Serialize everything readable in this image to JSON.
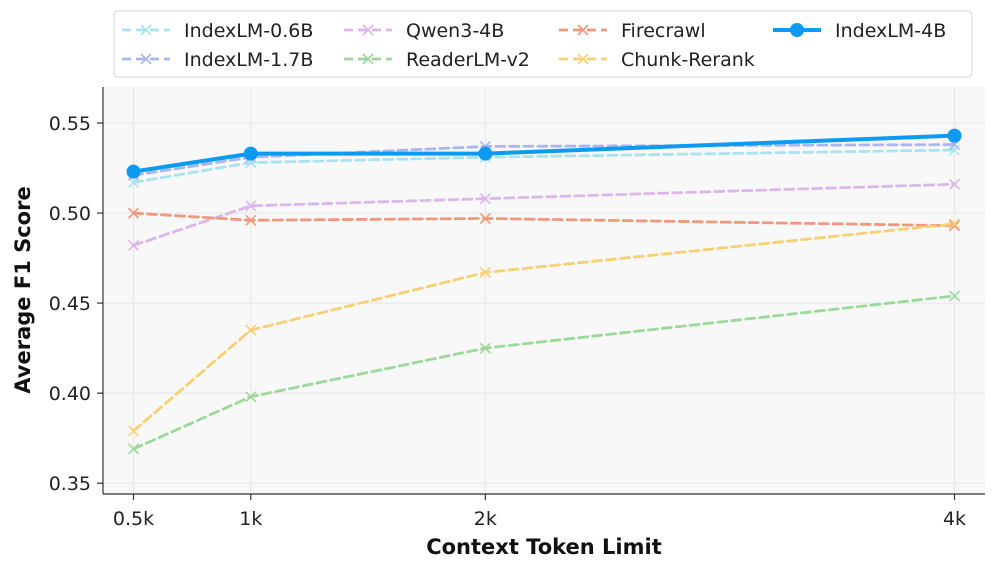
{
  "chart_data": {
    "type": "line",
    "title": "",
    "xlabel": "Context Token Limit",
    "ylabel": "Average F1 Score",
    "x": [
      0.5,
      1,
      2,
      4
    ],
    "x_tick_labels": [
      "0.5k",
      "1k",
      "2k",
      "4k"
    ],
    "xlim": [
      0.37,
      4.13
    ],
    "ylim": [
      0.344,
      0.57
    ],
    "y_ticks": [
      0.35,
      0.4,
      0.45,
      0.5,
      0.55
    ],
    "y_tick_labels": [
      "0.35",
      "0.40",
      "0.45",
      "0.50",
      "0.55"
    ],
    "grid": true,
    "legend_position": "top",
    "series": [
      {
        "name": "IndexLM-0.6B",
        "values": [
          0.517,
          0.528,
          0.531,
          0.535
        ],
        "color": "#a8e3ef",
        "style": "dashed",
        "marker": "x"
      },
      {
        "name": "IndexLM-1.7B",
        "values": [
          0.521,
          0.531,
          0.537,
          0.538
        ],
        "color": "#a9b6f0",
        "style": "dashed",
        "marker": "x"
      },
      {
        "name": "Qwen3-4B",
        "values": [
          0.482,
          0.504,
          0.508,
          0.516
        ],
        "color": "#dbb6eb",
        "style": "dashed",
        "marker": "x"
      },
      {
        "name": "ReaderLM-v2",
        "values": [
          0.369,
          0.398,
          0.425,
          0.454
        ],
        "color": "#9bd99b",
        "style": "dashed",
        "marker": "x"
      },
      {
        "name": "Firecrawl",
        "values": [
          0.5,
          0.496,
          0.497,
          0.493
        ],
        "color": "#f0977c",
        "style": "dashed",
        "marker": "x"
      },
      {
        "name": "Chunk-Rerank",
        "values": [
          0.379,
          0.435,
          0.467,
          0.494
        ],
        "color": "#f7d074",
        "style": "dashed",
        "marker": "x"
      },
      {
        "name": "IndexLM-4B",
        "values": [
          0.523,
          0.533,
          0.533,
          0.543
        ],
        "color": "#0c9bf1",
        "style": "solid",
        "marker": "circle"
      }
    ]
  }
}
